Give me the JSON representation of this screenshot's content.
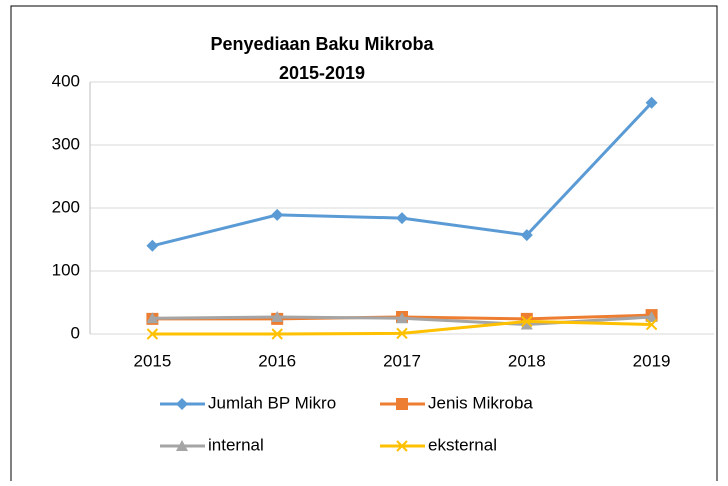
{
  "chart_data": {
    "type": "line",
    "title": "Penyediaan Baku Mikroba",
    "subtitle": "2015-2019",
    "categories": [
      "2015",
      "2016",
      "2017",
      "2018",
      "2019"
    ],
    "series": [
      {
        "name": "Jumlah BP Mikro",
        "color": "#5b9bd5",
        "marker": "diamond",
        "values": [
          140,
          189,
          184,
          157,
          367
        ]
      },
      {
        "name": "Jenis Mikroba",
        "color": "#ed7d31",
        "marker": "square",
        "values": [
          24,
          24,
          27,
          24,
          30
        ]
      },
      {
        "name": "internal",
        "color": "#a5a5a5",
        "marker": "triangle",
        "values": [
          25,
          27,
          25,
          15,
          27
        ]
      },
      {
        "name": "eksternal",
        "color": "#ffc000",
        "marker": "x",
        "values": [
          0,
          0,
          1,
          20,
          15
        ]
      }
    ],
    "ylim": [
      0,
      400
    ],
    "yticks": [
      0,
      100,
      200,
      300,
      400
    ],
    "grid": true,
    "legend": "bottom"
  }
}
